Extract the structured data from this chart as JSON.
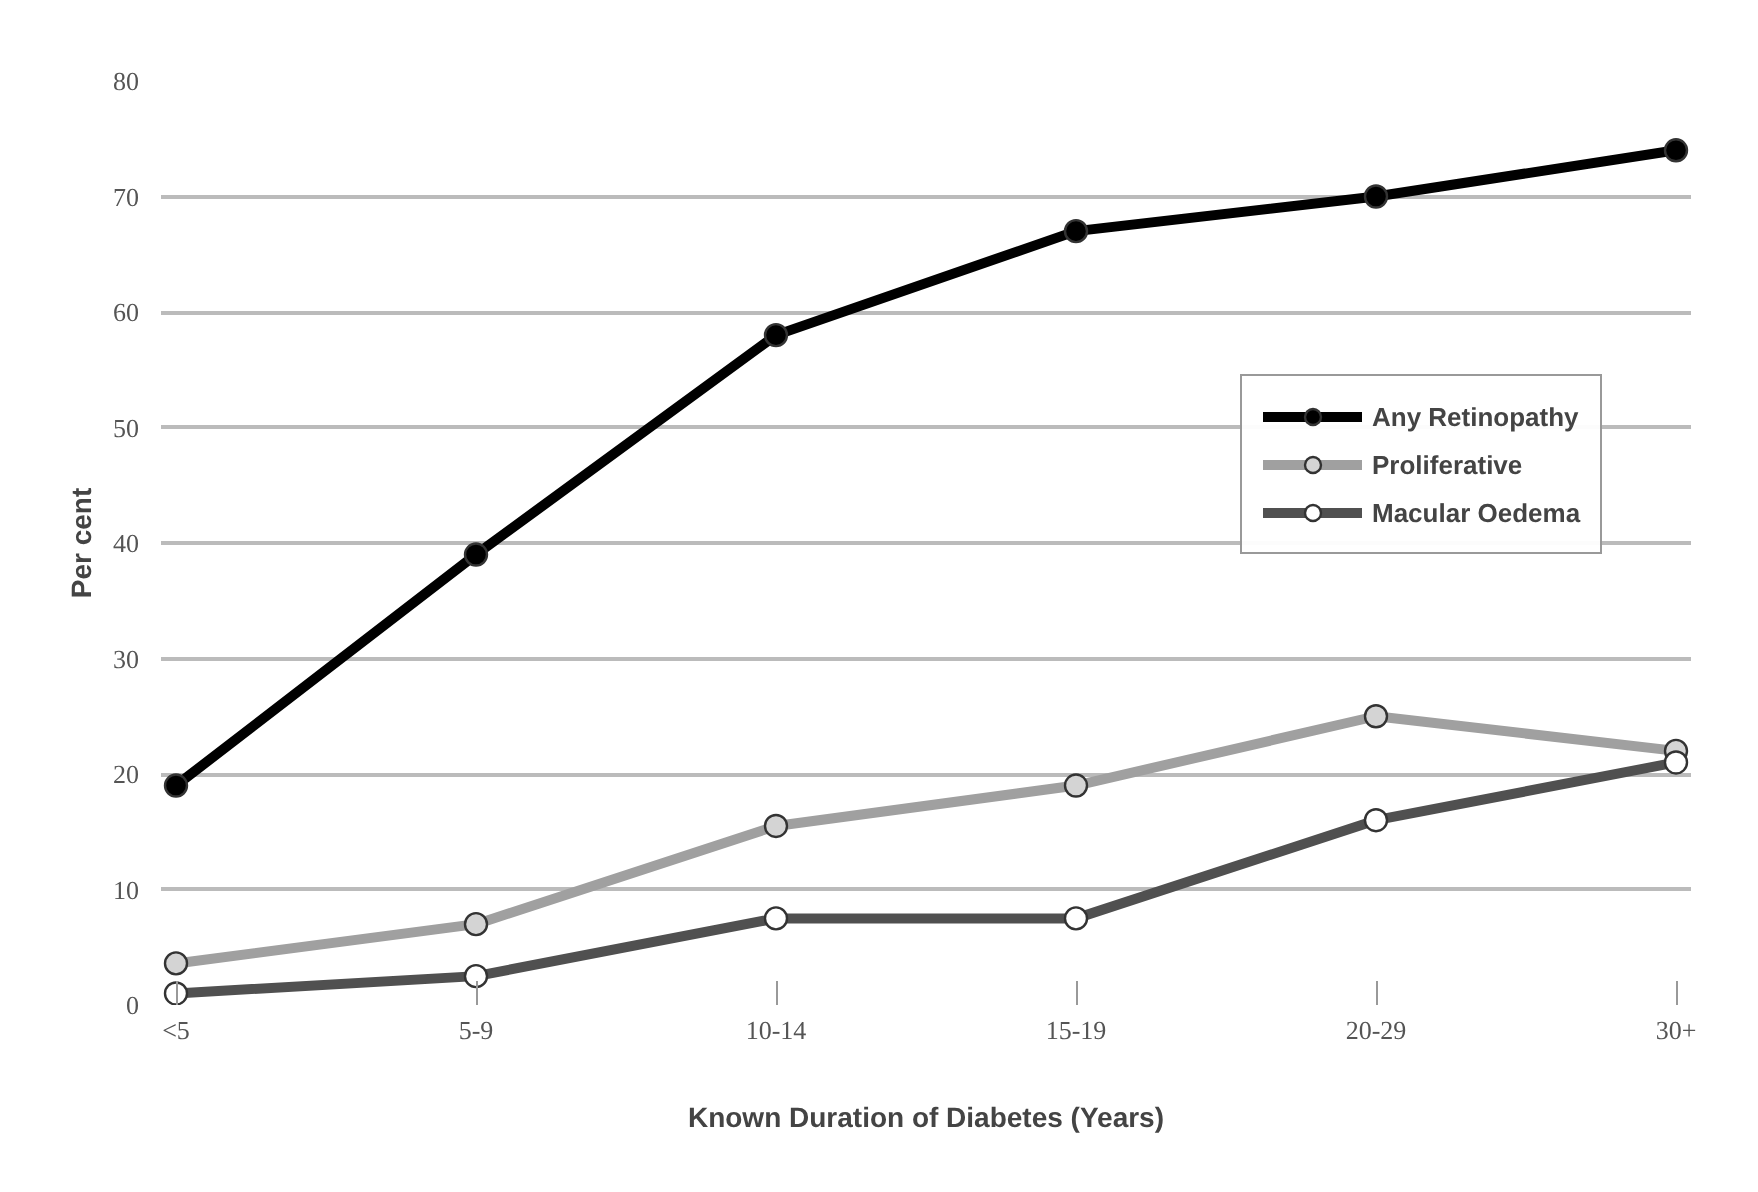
{
  "chart_data": {
    "type": "line",
    "xlabel": "Known Duration of Diabetes (Years)",
    "ylabel": "Per cent",
    "categories": [
      "<5",
      "5-9",
      "10-14",
      "15-19",
      "20-29",
      "30+"
    ],
    "series": [
      {
        "name": "Any Retinopathy",
        "color": "#000000",
        "values": [
          19,
          39,
          58,
          67,
          70,
          74
        ]
      },
      {
        "name": "Proliferative",
        "color": "#a0a0a0",
        "values": [
          3.6,
          7,
          15.5,
          19,
          25,
          22
        ]
      },
      {
        "name": "Macular Oedema",
        "color": "#505050",
        "values": [
          1,
          2.5,
          7.5,
          7.5,
          16,
          21
        ]
      }
    ],
    "ylim": [
      0,
      80
    ],
    "yticks": [
      0,
      10,
      20,
      30,
      40,
      50,
      60,
      70,
      80
    ],
    "grid": "y",
    "legend": "right",
    "marker": "circle",
    "line_style": "solid"
  }
}
